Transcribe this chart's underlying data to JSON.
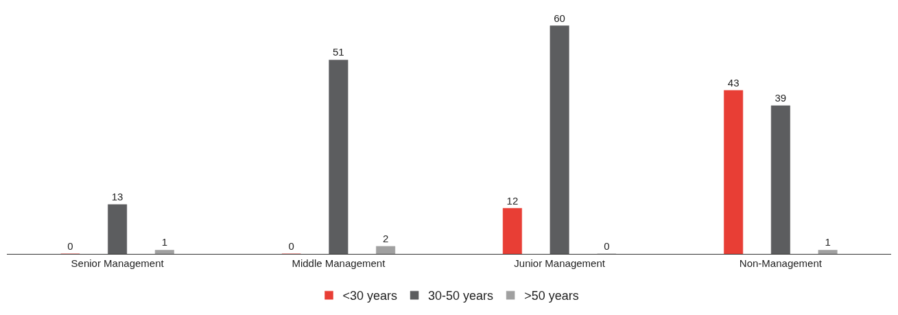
{
  "chart_data": {
    "type": "bar",
    "categories": [
      "Senior Management",
      "Middle Management",
      "Junior Management",
      "Non-Management"
    ],
    "series": [
      {
        "name": "<30 years",
        "color": "#e83e35",
        "values": [
          0,
          0,
          12,
          43
        ]
      },
      {
        "name": "30-50 years",
        "color": "#5c5d5f",
        "values": [
          13,
          51,
          60,
          39
        ]
      },
      {
        "name": ">50 years",
        "color": "#a0a0a0",
        "values": [
          1,
          2,
          0,
          1
        ]
      }
    ],
    "tick_labels": "x",
    "data_labels": true,
    "legend": "bottom"
  }
}
